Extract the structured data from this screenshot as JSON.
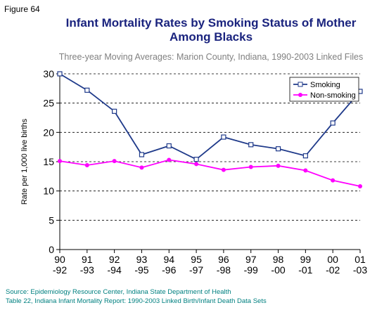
{
  "chart_data": {
    "type": "line",
    "figure_label": "Figure 64",
    "title": [
      "Infant Mortality Rates by Smoking Status of Mother",
      "Among Blacks"
    ],
    "subtitle": "Three-year Moving Averages: Marion County, Indiana, 1990-2003 Linked Files",
    "y_label": "Rate per 1,000 live births",
    "categories": [
      [
        "90",
        "-92"
      ],
      [
        "91",
        "-93"
      ],
      [
        "92",
        "-94"
      ],
      [
        "93",
        "-95"
      ],
      [
        "94",
        "-96"
      ],
      [
        "95",
        "-97"
      ],
      [
        "96",
        "-98"
      ],
      [
        "97",
        "-99"
      ],
      [
        "98",
        "-00"
      ],
      [
        "99",
        "-01"
      ],
      [
        "00",
        "-02"
      ],
      [
        "01",
        "-03"
      ]
    ],
    "series": [
      {
        "name": "Smoking",
        "color": "#1f3a8a",
        "marker": "square",
        "values": [
          30,
          27.2,
          23.6,
          16.2,
          17.7,
          15.4,
          19.2,
          17.9,
          17.2,
          16.0,
          21.6,
          27.0
        ]
      },
      {
        "name": "Non-smoking",
        "color": "#ff00ff",
        "marker": "circle",
        "values": [
          15.1,
          14.4,
          15.1,
          14.0,
          15.3,
          14.6,
          13.6,
          14.1,
          14.3,
          13.5,
          11.8,
          10.8
        ]
      }
    ],
    "ylim": [
      0,
      30
    ],
    "yticks": [
      0,
      5,
      10,
      15,
      20,
      25,
      30
    ],
    "grid": true,
    "legend": "upper-right",
    "source": [
      "Source: Epidemiology Resource Center, Indiana State Department of Health",
      "Table 22, Indiana Infant Mortality Report: 1990-2003 Linked Birth/Infant Death Data Sets"
    ]
  }
}
